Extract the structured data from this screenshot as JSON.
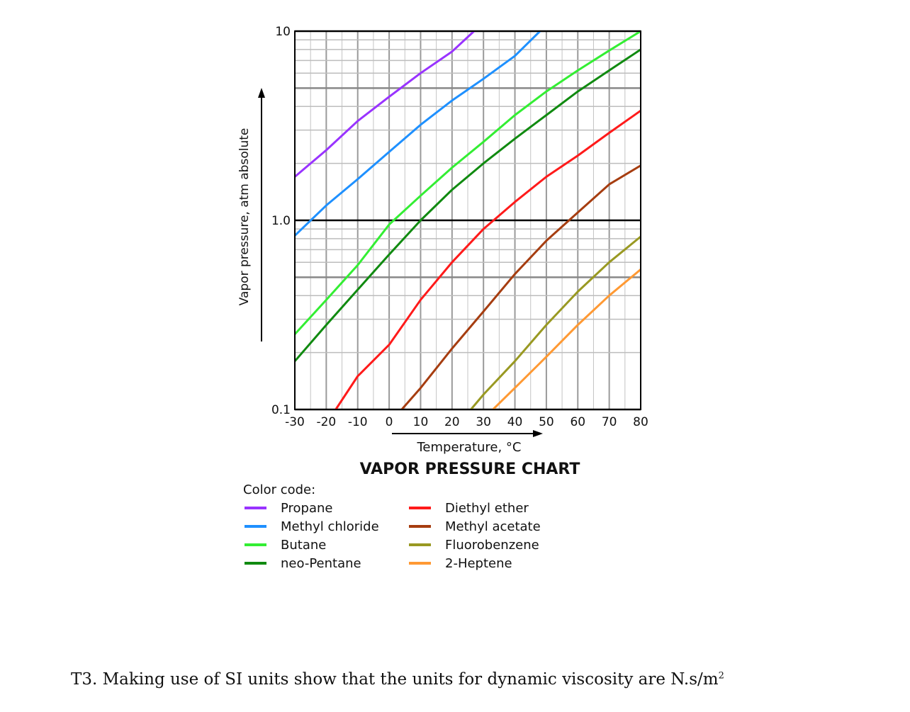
{
  "chart_data": {
    "type": "line",
    "title": "VAPOR PRESSURE CHART",
    "xlabel": "Temperature, °C",
    "ylabel": "Vapor pressure, atm absolute",
    "xlim": [
      -30,
      80
    ],
    "ylim": [
      0.1,
      10
    ],
    "y_scale": "log",
    "x_ticks": [
      "-30",
      "-20",
      "-10",
      "0",
      "10",
      "20",
      "30",
      "40",
      "50",
      "60",
      "70",
      "80"
    ],
    "y_ticks": [
      {
        "value": 10,
        "label": "10"
      },
      {
        "value": 1,
        "label": "1.0"
      },
      {
        "value": 0.1,
        "label": "0.1"
      }
    ],
    "grid": true,
    "legend_title": "Color code:",
    "legend_placement": "below",
    "series": [
      {
        "name": "Propane",
        "color": "#9933ff",
        "points": [
          [
            -30,
            1.7
          ],
          [
            -20,
            2.35
          ],
          [
            -10,
            3.35
          ],
          [
            0,
            4.5
          ],
          [
            10,
            6.0
          ],
          [
            20,
            7.8
          ],
          [
            27,
            10.0
          ]
        ]
      },
      {
        "name": "Methyl chloride",
        "color": "#1e90ff",
        "points": [
          [
            -30,
            0.83
          ],
          [
            -20,
            1.2
          ],
          [
            -10,
            1.65
          ],
          [
            0,
            2.3
          ],
          [
            10,
            3.2
          ],
          [
            20,
            4.3
          ],
          [
            30,
            5.6
          ],
          [
            40,
            7.4
          ],
          [
            48,
            10.0
          ]
        ]
      },
      {
        "name": "Butane",
        "color": "#33ee33",
        "points": [
          [
            -30,
            0.25
          ],
          [
            -20,
            0.38
          ],
          [
            -10,
            0.58
          ],
          [
            0,
            0.95
          ],
          [
            10,
            1.35
          ],
          [
            20,
            1.9
          ],
          [
            30,
            2.6
          ],
          [
            40,
            3.6
          ],
          [
            50,
            4.8
          ],
          [
            60,
            6.2
          ],
          [
            70,
            7.9
          ],
          [
            80,
            10.0
          ]
        ]
      },
      {
        "name": "neo-Pentane",
        "color": "#108a10",
        "points": [
          [
            -30,
            0.18
          ],
          [
            -20,
            0.28
          ],
          [
            -10,
            0.43
          ],
          [
            0,
            0.66
          ],
          [
            10,
            1.0
          ],
          [
            20,
            1.45
          ],
          [
            30,
            2.0
          ],
          [
            40,
            2.7
          ],
          [
            50,
            3.6
          ],
          [
            60,
            4.8
          ],
          [
            70,
            6.2
          ],
          [
            80,
            8.0
          ]
        ]
      },
      {
        "name": "Diethyl ether",
        "color": "#ff1a1a",
        "points": [
          [
            -17,
            0.1
          ],
          [
            -10,
            0.15
          ],
          [
            0,
            0.22
          ],
          [
            10,
            0.38
          ],
          [
            20,
            0.6
          ],
          [
            30,
            0.9
          ],
          [
            40,
            1.25
          ],
          [
            50,
            1.7
          ],
          [
            60,
            2.2
          ],
          [
            70,
            2.9
          ],
          [
            80,
            3.8
          ]
        ]
      },
      {
        "name": "Methyl acetate",
        "color": "#a63d10",
        "points": [
          [
            4,
            0.1
          ],
          [
            10,
            0.13
          ],
          [
            20,
            0.21
          ],
          [
            30,
            0.33
          ],
          [
            40,
            0.52
          ],
          [
            50,
            0.78
          ],
          [
            60,
            1.1
          ],
          [
            70,
            1.55
          ],
          [
            80,
            1.95
          ]
        ]
      },
      {
        "name": "Fluorobenzene",
        "color": "#999922",
        "points": [
          [
            26,
            0.1
          ],
          [
            30,
            0.12
          ],
          [
            40,
            0.18
          ],
          [
            50,
            0.28
          ],
          [
            60,
            0.42
          ],
          [
            70,
            0.6
          ],
          [
            80,
            0.82
          ]
        ]
      },
      {
        "name": "2-Heptene",
        "color": "#ff9933",
        "points": [
          [
            33,
            0.1
          ],
          [
            40,
            0.13
          ],
          [
            50,
            0.19
          ],
          [
            60,
            0.28
          ],
          [
            70,
            0.4
          ],
          [
            80,
            0.55
          ]
        ]
      }
    ]
  },
  "question": {
    "text": "T3. Making use of SI units show that the units for dynamic viscosity are N.s/m",
    "superscript": "2"
  }
}
